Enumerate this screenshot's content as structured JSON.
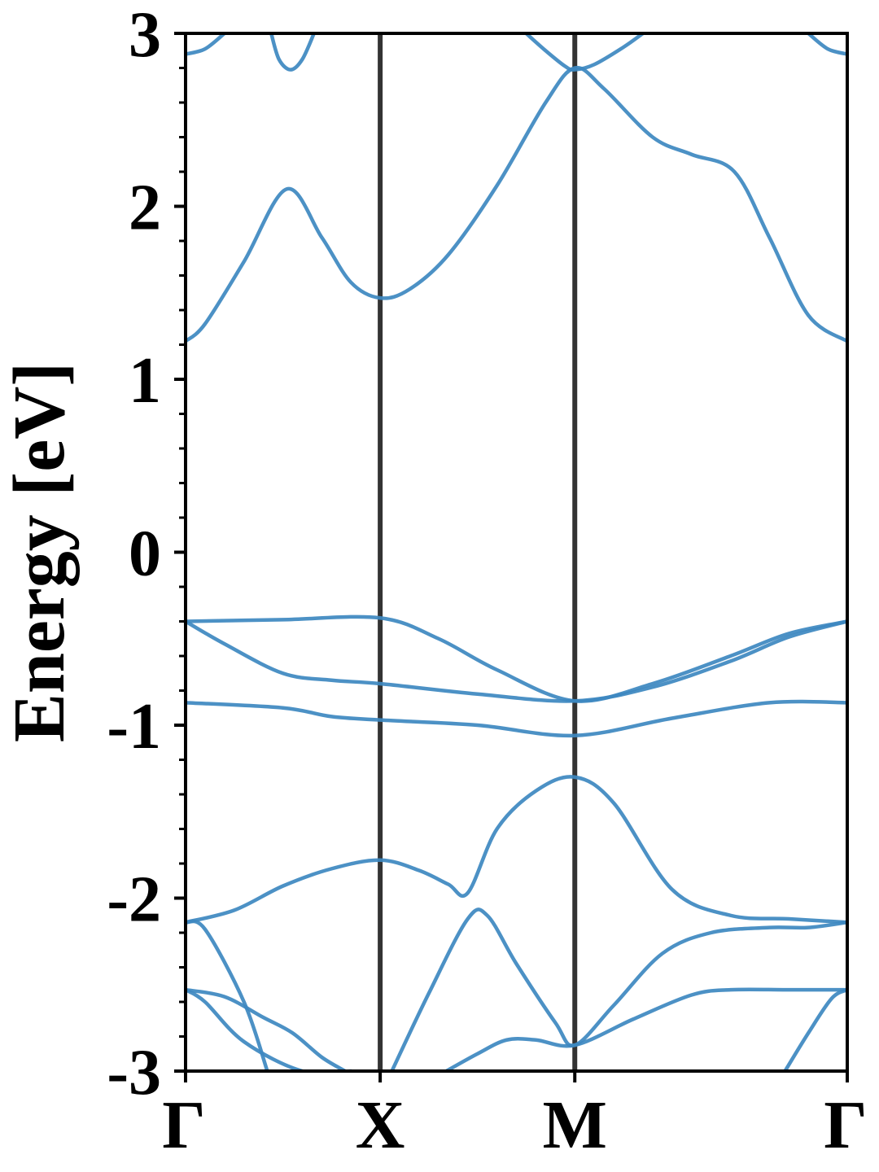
{
  "chart_data": {
    "type": "line",
    "title": "",
    "ylabel": "Energy [eV]",
    "xlabel": "",
    "ylim": [
      -3,
      3
    ],
    "xlim": [
      0,
      3.4
    ],
    "grid": false,
    "yticks": [
      {
        "value": 3,
        "label": "3"
      },
      {
        "value": 2,
        "label": "2"
      },
      {
        "value": 1,
        "label": "1"
      },
      {
        "value": 0,
        "label": "0"
      },
      {
        "value": -1,
        "label": "-1"
      },
      {
        "value": -2,
        "label": "-2"
      },
      {
        "value": -3,
        "label": "-3"
      }
    ],
    "ytick_minor_step": 0.2,
    "xticks": [
      {
        "value": 0,
        "label": "Γ"
      },
      {
        "value": 1.0,
        "label": "X"
      },
      {
        "value": 2.0,
        "label": "M"
      },
      {
        "value": 3.4,
        "label": "Γ"
      }
    ],
    "vlines": [
      1.0,
      2.0
    ],
    "line_color": "#3d88c0",
    "vline_color": "#333333",
    "series": [
      {
        "x": [
          0,
          0.1,
          0.3,
          0.52,
          0.7,
          0.85,
          1.0,
          1.15,
          1.35,
          1.6,
          1.85,
          2.0,
          2.15,
          2.4,
          2.6,
          2.82,
          3.0,
          3.2,
          3.4
        ],
        "y": [
          1.22,
          1.32,
          1.68,
          2.1,
          1.82,
          1.56,
          1.47,
          1.52,
          1.72,
          2.12,
          2.6,
          2.8,
          2.68,
          2.4,
          2.3,
          2.2,
          1.82,
          1.37,
          1.22
        ]
      },
      {
        "x": [
          0,
          0.1,
          0.2
        ],
        "y": [
          2.88,
          2.91,
          3.0
        ]
      },
      {
        "x": [
          0.44,
          0.48,
          0.54,
          0.6,
          0.66
        ],
        "y": [
          3.0,
          2.85,
          2.79,
          2.85,
          3.0
        ]
      },
      {
        "x": [
          1.75,
          1.85,
          1.95,
          2.0,
          2.1,
          2.25,
          2.35
        ],
        "y": [
          3.0,
          2.9,
          2.81,
          2.79,
          2.82,
          2.92,
          3.0
        ]
      },
      {
        "x": [
          3.2,
          3.3,
          3.4
        ],
        "y": [
          3.0,
          2.91,
          2.88
        ]
      },
      {
        "x": [
          0,
          0.5,
          1.0,
          1.3,
          1.6,
          2.0,
          2.4,
          2.8,
          3.1,
          3.4
        ],
        "y": [
          -0.4,
          -0.39,
          -0.38,
          -0.5,
          -0.68,
          -0.86,
          -0.76,
          -0.6,
          -0.47,
          -0.4
        ]
      },
      {
        "x": [
          0,
          0.2,
          0.5,
          0.75,
          1.0,
          1.5,
          2.0,
          2.4,
          2.8,
          3.1,
          3.4
        ],
        "y": [
          -0.4,
          -0.53,
          -0.7,
          -0.74,
          -0.76,
          -0.82,
          -0.86,
          -0.78,
          -0.63,
          -0.49,
          -0.4
        ]
      },
      {
        "x": [
          0,
          0.5,
          0.75,
          1.0,
          1.5,
          2.0,
          2.5,
          3.0,
          3.4
        ],
        "y": [
          -0.87,
          -0.9,
          -0.95,
          -0.97,
          -1.0,
          -1.06,
          -0.96,
          -0.87,
          -0.87
        ]
      },
      {
        "x": [
          0,
          0.25,
          0.5,
          0.75,
          1.0,
          1.2,
          1.35,
          1.45,
          1.6,
          1.8,
          2.0,
          2.2,
          2.5,
          2.8,
          3.1,
          3.4
        ],
        "y": [
          -2.14,
          -2.07,
          -1.93,
          -1.83,
          -1.78,
          -1.84,
          -1.92,
          -1.97,
          -1.6,
          -1.38,
          -1.3,
          -1.45,
          -1.95,
          -2.1,
          -2.12,
          -2.14
        ]
      },
      {
        "x": [
          0,
          0.1,
          0.3,
          0.42
        ],
        "y": [
          -2.14,
          -2.18,
          -2.6,
          -3.0
        ]
      },
      {
        "x": [
          0,
          0.2,
          0.4,
          0.55,
          0.7,
          0.82
        ],
        "y": [
          -2.53,
          -2.57,
          -2.69,
          -2.78,
          -2.92,
          -3.0
        ]
      },
      {
        "x": [
          0,
          0.1,
          0.3,
          0.6,
          0.85
        ],
        "y": [
          -2.53,
          -2.6,
          -2.83,
          -3.0,
          -3.0
        ]
      },
      {
        "x": [
          1.06,
          1.25,
          1.45,
          1.55,
          1.7,
          1.9,
          2.0,
          2.2,
          2.45,
          2.7,
          3.0,
          3.2,
          3.4
        ],
        "y": [
          -3.0,
          -2.55,
          -2.12,
          -2.1,
          -2.38,
          -2.72,
          -2.85,
          -2.62,
          -2.32,
          -2.2,
          -2.17,
          -2.17,
          -2.14
        ]
      },
      {
        "x": [
          1.34,
          1.5,
          1.65,
          1.8,
          2.0,
          2.3,
          2.6,
          2.8,
          3.1,
          3.4
        ],
        "y": [
          -3.0,
          -2.9,
          -2.82,
          -2.82,
          -2.85,
          -2.7,
          -2.56,
          -2.53,
          -2.53,
          -2.53
        ]
      },
      {
        "x": [
          3.08,
          3.2,
          3.32,
          3.4
        ],
        "y": [
          -3.0,
          -2.78,
          -2.58,
          -2.53
        ]
      }
    ]
  }
}
